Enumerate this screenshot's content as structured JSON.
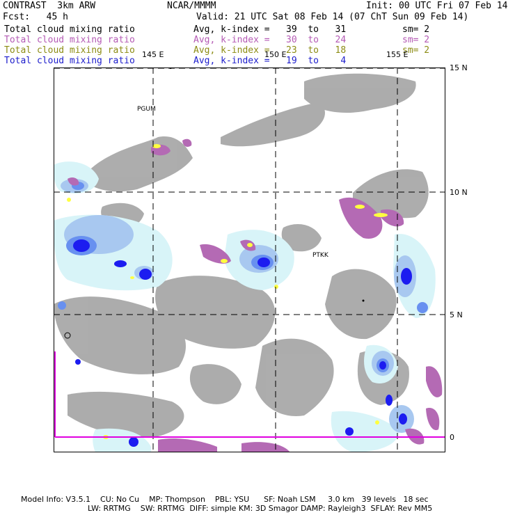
{
  "header": {
    "title_left": "CONTRAST  3km ARW",
    "title_center": "NCAR/MMMM",
    "init": "Init: 00 UTC Fri 07 Feb 14",
    "fcst": "Fcst:   45 h",
    "valid": "Valid: 21 UTC Sat 08 Feb 14 (07 ChT Sun 09 Feb 14)"
  },
  "fields": [
    {
      "name": "Total cloud mixing ratio",
      "range": "Avg, k-index =   39  to   31",
      "sm": "sm= 2",
      "color": "#000000"
    },
    {
      "name": "Total cloud mixing ratio",
      "range": "Avg, k-index =   30  to   24",
      "sm": "sm= 2",
      "color": "#b45ab4"
    },
    {
      "name": "Total cloud mixing ratio",
      "range": "Avg, k-index =   23  to   18",
      "sm": "sm= 2",
      "color": "#8c8c14"
    },
    {
      "name": "Total cloud mixing ratio",
      "range": "Avg, k-index =   19  to    4",
      "sm": "",
      "color": "#1c1ccc"
    }
  ],
  "map": {
    "lon_labels": [
      "145 E",
      "150 E",
      "155 E"
    ],
    "lat_labels": [
      "15 N",
      "10 N",
      "5 N",
      "0"
    ],
    "stations": [
      "PGUM",
      "PTKK"
    ]
  },
  "footer": {
    "line1": "Model Info: V3.5.1    CU: No Cu    MP: Thompson    PBL: YSU      SF: Noah LSM     3.0 km   39 levels   18 sec",
    "line2": "LW: RRTMG    SW: RRTMG  DIFF: simple KM: 3D Smagor DAMP: Rayleigh3  SFLAY: Rev MM5"
  },
  "colors": {
    "gray_cloud": "#a6a6a6",
    "light_cyan": "#d8f4f8",
    "light_blue": "#a8c8f0",
    "mid_blue": "#6890f0",
    "deep_blue": "#1c1cf0",
    "magenta_fill": "#b46ab4",
    "yellow_fill": "#ffff40",
    "boundary": "#e000e0"
  }
}
